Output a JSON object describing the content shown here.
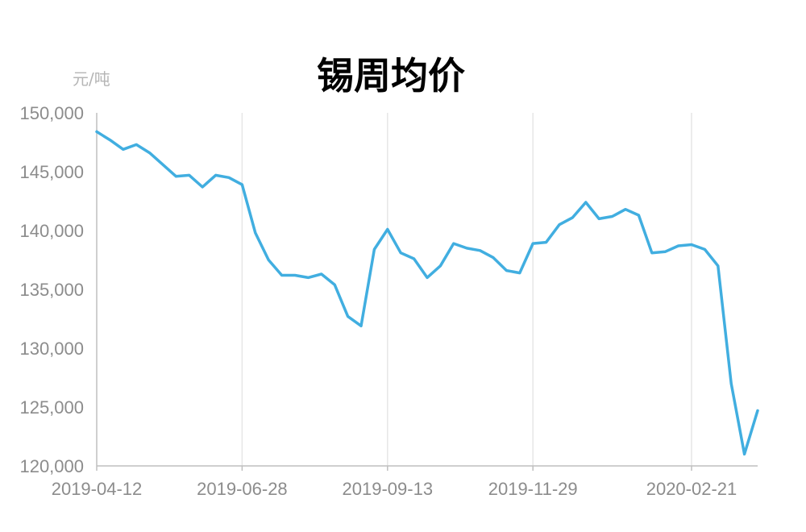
{
  "chart_data": {
    "type": "line",
    "title": "锡周均价",
    "unit_label": "元/吨",
    "ylim": [
      120000,
      150000
    ],
    "y_ticks": [
      120000,
      125000,
      130000,
      135000,
      140000,
      145000,
      150000
    ],
    "y_tick_labels": [
      "120,000",
      "125,000",
      "130,000",
      "135,000",
      "140,000",
      "145,000",
      "150,000"
    ],
    "x_tick_labels": [
      "2019-04-12",
      "2019-06-28",
      "2019-09-13",
      "2019-11-29",
      "2020-02-21"
    ],
    "x_tick_dates": [
      "2019-04-12",
      "2019-06-28",
      "2019-09-13",
      "2019-11-29",
      "2020-02-21"
    ],
    "grid": "vertical",
    "x": [
      "2019-04-12",
      "2019-04-19",
      "2019-04-26",
      "2019-05-03",
      "2019-05-10",
      "2019-05-17",
      "2019-05-24",
      "2019-05-31",
      "2019-06-07",
      "2019-06-14",
      "2019-06-21",
      "2019-06-28",
      "2019-07-05",
      "2019-07-12",
      "2019-07-19",
      "2019-07-26",
      "2019-08-02",
      "2019-08-09",
      "2019-08-16",
      "2019-08-23",
      "2019-08-30",
      "2019-09-06",
      "2019-09-13",
      "2019-09-20",
      "2019-09-27",
      "2019-10-04",
      "2019-10-11",
      "2019-10-18",
      "2019-10-25",
      "2019-11-01",
      "2019-11-08",
      "2019-11-15",
      "2019-11-22",
      "2019-11-29",
      "2019-12-06",
      "2019-12-13",
      "2019-12-20",
      "2019-12-27",
      "2020-01-03",
      "2020-01-10",
      "2020-01-17",
      "2020-01-24",
      "2020-01-31",
      "2020-02-07",
      "2020-02-14",
      "2020-02-21",
      "2020-02-28",
      "2020-03-06",
      "2020-03-13",
      "2020-03-20",
      "2020-03-27"
    ],
    "series": [
      {
        "color": "#41aee0",
        "values": [
          148400,
          147700,
          146900,
          147300,
          146600,
          145600,
          144600,
          144700,
          143700,
          144700,
          144500,
          143900,
          139800,
          137500,
          136200,
          136200,
          136000,
          136300,
          135400,
          132700,
          131900,
          138400,
          140100,
          138100,
          137600,
          136000,
          137000,
          138900,
          138500,
          138300,
          137700,
          136600,
          136400,
          138900,
          139000,
          140500,
          141100,
          142400,
          141000,
          141200,
          141800,
          141300,
          138100,
          138200,
          138700,
          138800,
          138400,
          137000,
          127000,
          121000,
          124700
        ]
      }
    ]
  }
}
